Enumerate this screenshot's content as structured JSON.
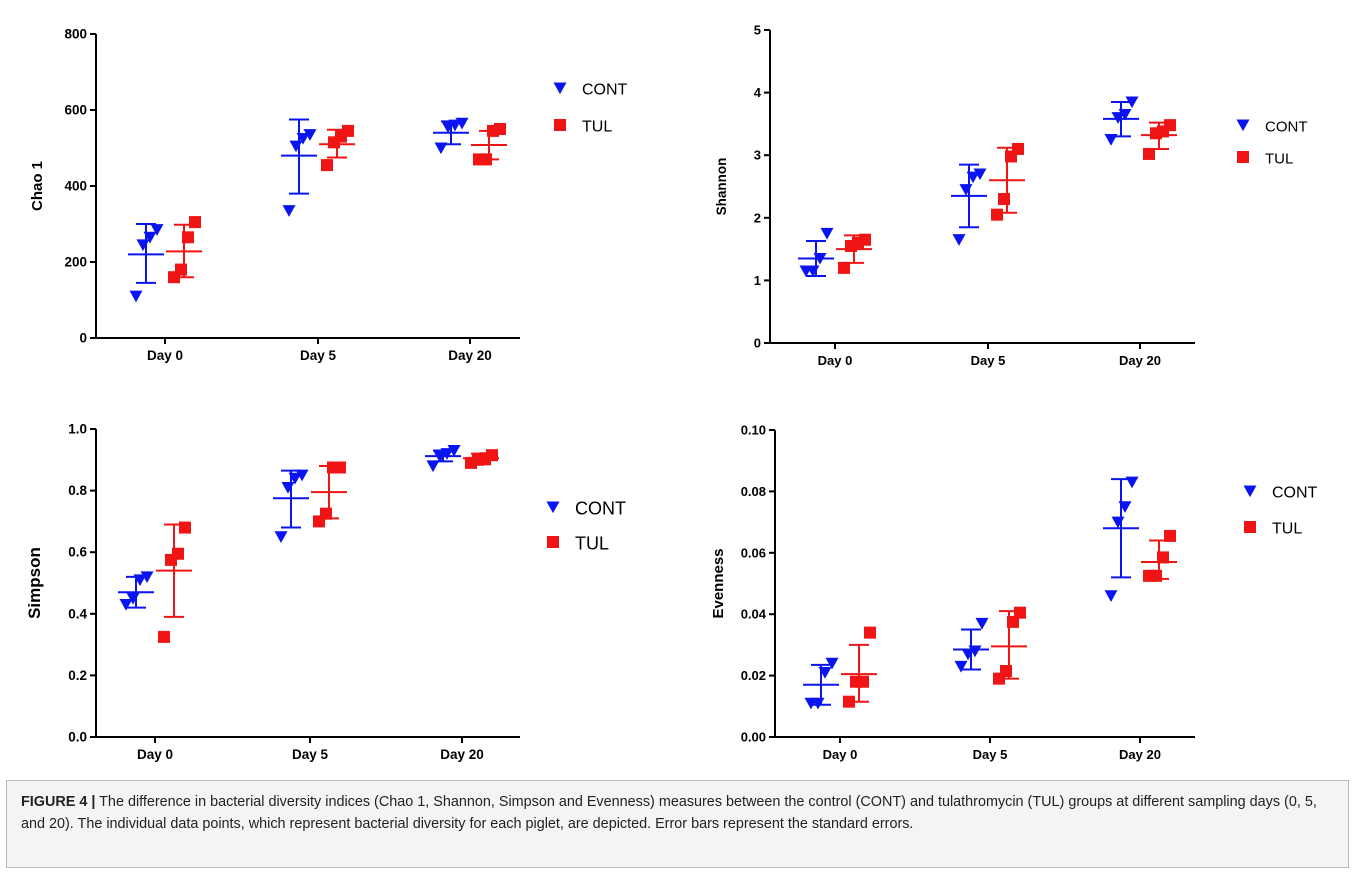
{
  "colors": {
    "CONT": "#0a14f0",
    "TUL": "#f01414",
    "axis": "#000000"
  },
  "caption": {
    "label": "FIGURE 4 |",
    "text": " The difference in bacterial diversity indices (Chao 1, Shannon, Simpson and Evenness) measures between the control (CONT) and tulathromycin (TUL) groups at different sampling days (0, 5, and 20). The individual data points, which represent bacterial diversity for each piglet, are depicted. Error bars represent the standard errors."
  },
  "chart_data": [
    {
      "type": "scatter",
      "ylabel": "Chao 1",
      "ylim": [
        0,
        800
      ],
      "yticks": [
        "0",
        "200",
        "400",
        "600",
        "800"
      ],
      "ytick_values": [
        0,
        200,
        400,
        600,
        800
      ],
      "categories": [
        "Day 0",
        "Day 5",
        "Day 20"
      ],
      "legend": [
        "CONT",
        "TUL"
      ],
      "legend_position": "right",
      "series": [
        {
          "name": "CONT",
          "marker": "triangle-down",
          "points": [
            [
              110,
              245,
              265,
              285
            ],
            [
              335,
              505,
              525,
              535
            ],
            [
              500,
              555,
              560,
              565
            ]
          ],
          "mean": [
            220,
            480,
            540
          ],
          "error": [
            [
              145,
              300
            ],
            [
              380,
              575
            ],
            [
              510,
              570
            ]
          ]
        },
        {
          "name": "TUL",
          "marker": "square",
          "points": [
            [
              160,
              180,
              265,
              305
            ],
            [
              455,
              515,
              530,
              545
            ],
            [
              470,
              470,
              545,
              550
            ]
          ],
          "mean": [
            228,
            510,
            508
          ],
          "error": [
            [
              160,
              298
            ],
            [
              475,
              548
            ],
            [
              470,
              545
            ]
          ]
        }
      ]
    },
    {
      "type": "scatter",
      "ylabel": "Shannon",
      "ylim": [
        0,
        5
      ],
      "yticks": [
        "0",
        "1",
        "2",
        "3",
        "4",
        "5"
      ],
      "ytick_values": [
        0,
        1,
        2,
        3,
        4,
        5
      ],
      "categories": [
        "Day 0",
        "Day 5",
        "Day 20"
      ],
      "legend": [
        "CONT",
        "TUL"
      ],
      "legend_position": "right",
      "series": [
        {
          "name": "CONT",
          "marker": "triangle-down",
          "points": [
            [
              1.15,
              1.15,
              1.35,
              1.75
            ],
            [
              1.65,
              2.45,
              2.65,
              2.7
            ],
            [
              3.25,
              3.6,
              3.65,
              3.85
            ]
          ],
          "mean": [
            1.35,
            2.35,
            3.58
          ],
          "error": [
            [
              1.07,
              1.63
            ],
            [
              1.85,
              2.85
            ],
            [
              3.3,
              3.85
            ]
          ]
        },
        {
          "name": "TUL",
          "marker": "square",
          "points": [
            [
              1.2,
              1.55,
              1.6,
              1.65
            ],
            [
              2.05,
              2.3,
              2.98,
              3.1
            ],
            [
              3.02,
              3.35,
              3.38,
              3.48
            ]
          ],
          "mean": [
            1.5,
            2.6,
            3.32
          ],
          "error": [
            [
              1.28,
              1.72
            ],
            [
              2.08,
              3.12
            ],
            [
              3.1,
              3.52
            ]
          ]
        }
      ]
    },
    {
      "type": "scatter",
      "ylabel": "Simpson",
      "ylim": [
        0,
        1
      ],
      "yticks": [
        "0.0",
        "0.2",
        "0.4",
        "0.6",
        "0.8",
        "1.0"
      ],
      "ytick_values": [
        0,
        0.2,
        0.4,
        0.6,
        0.8,
        1.0
      ],
      "categories": [
        "Day 0",
        "Day 5",
        "Day 20"
      ],
      "legend": [
        "CONT",
        "TUL"
      ],
      "legend_position": "right",
      "series": [
        {
          "name": "CONT",
          "marker": "triangle-down",
          "points": [
            [
              0.43,
              0.45,
              0.51,
              0.52
            ],
            [
              0.65,
              0.81,
              0.84,
              0.85
            ],
            [
              0.88,
              0.91,
              0.92,
              0.93
            ]
          ],
          "mean": [
            0.47,
            0.775,
            0.912
          ],
          "error": [
            [
              0.42,
              0.52
            ],
            [
              0.68,
              0.865
            ],
            [
              0.895,
              0.93
            ]
          ]
        },
        {
          "name": "TUL",
          "marker": "square",
          "points": [
            [
              0.325,
              0.575,
              0.595,
              0.68
            ],
            [
              0.7,
              0.725,
              0.875,
              0.875
            ],
            [
              0.89,
              0.9,
              0.905,
              0.915
            ]
          ],
          "mean": [
            0.54,
            0.795,
            0.905
          ],
          "error": [
            [
              0.39,
              0.69
            ],
            [
              0.71,
              0.88
            ],
            [
              0.885,
              0.92
            ]
          ]
        }
      ]
    },
    {
      "type": "scatter",
      "ylabel": "Evenness",
      "ylim": [
        0,
        0.1
      ],
      "yticks": [
        "0.00",
        "0.02",
        "0.04",
        "0.06",
        "0.08",
        "0.10"
      ],
      "ytick_values": [
        0,
        0.02,
        0.04,
        0.06,
        0.08,
        0.1
      ],
      "categories": [
        "Day 0",
        "Day 5",
        "Day 20"
      ],
      "legend": [
        "CONT",
        "TUL"
      ],
      "legend_position": "right",
      "series": [
        {
          "name": "CONT",
          "marker": "triangle-down",
          "points": [
            [
              0.011,
              0.011,
              0.021,
              0.024
            ],
            [
              0.023,
              0.027,
              0.028,
              0.037
            ],
            [
              0.046,
              0.07,
              0.075,
              0.083
            ]
          ],
          "mean": [
            0.017,
            0.0285,
            0.068
          ],
          "error": [
            [
              0.0105,
              0.0235
            ],
            [
              0.022,
              0.035
            ],
            [
              0.052,
              0.084
            ]
          ]
        },
        {
          "name": "TUL",
          "marker": "square",
          "points": [
            [
              0.0115,
              0.018,
              0.018,
              0.034
            ],
            [
              0.019,
              0.0215,
              0.0375,
              0.0405
            ],
            [
              0.0525,
              0.0525,
              0.0585,
              0.0655
            ]
          ],
          "mean": [
            0.0205,
            0.0295,
            0.057
          ],
          "error": [
            [
              0.0115,
              0.03
            ],
            [
              0.019,
              0.041
            ],
            [
              0.0515,
              0.064
            ]
          ]
        }
      ]
    }
  ]
}
